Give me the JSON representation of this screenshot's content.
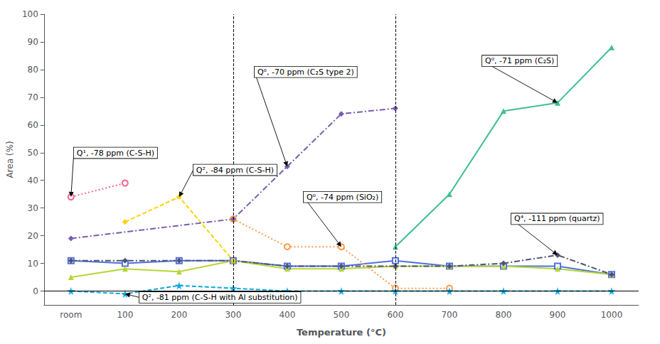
{
  "chart_data": {
    "type": "line",
    "categories": [
      "room",
      "100",
      "200",
      "300",
      "400",
      "500",
      "600",
      "700",
      "800",
      "900",
      "1000"
    ],
    "series": [
      {
        "values": [
          11,
          10,
          11,
          11,
          9,
          9,
          11,
          9,
          9,
          9,
          6
        ],
        "marker": "open_square",
        "line_style": "solid"
      },
      {
        "values": [
          5,
          8,
          7,
          11,
          8,
          8,
          9,
          9,
          9,
          8,
          6
        ],
        "marker": "triangle",
        "line_style": "solid"
      },
      {
        "values": [
          11,
          11,
          11,
          11,
          9,
          9,
          9,
          9,
          10,
          13,
          6
        ],
        "marker": "diamond",
        "line_style": "dashdot"
      },
      {
        "values": [
          null,
          null,
          null,
          26,
          16,
          16,
          1,
          1,
          null,
          null,
          null
        ],
        "marker": "open_circle",
        "line_style": "dotted"
      },
      {
        "values": [
          0,
          -1,
          2,
          1,
          0,
          0,
          0,
          0,
          0,
          0,
          0
        ],
        "marker": "star",
        "line_style": "dashed"
      },
      {
        "values": [
          null,
          25,
          34,
          11,
          null,
          null,
          null,
          null,
          null,
          null,
          null
        ],
        "marker": "diamond",
        "line_style": "dashed"
      },
      {
        "values": [
          34,
          39,
          null,
          null,
          null,
          null,
          null,
          null,
          null,
          null,
          null
        ],
        "marker": "open_circle",
        "line_style": "dotted"
      },
      {
        "values": [
          19,
          null,
          null,
          26,
          45,
          64,
          66,
          null,
          null,
          null,
          null
        ],
        "marker": "diamond",
        "line_style": "dashdot"
      },
      {
        "values": [
          null,
          null,
          null,
          null,
          null,
          null,
          16,
          35,
          65,
          68,
          88
        ],
        "marker": "triangle",
        "line_style": "solid"
      }
    ],
    "xlabel": "Temperature (°C)",
    "ylabel": "Area (%)",
    "ylim": [
      -5,
      100
    ],
    "yticks": [
      0,
      10,
      20,
      30,
      40,
      50,
      60,
      70,
      80,
      90,
      100
    ],
    "grid": false,
    "vlines": [
      "300",
      "600"
    ],
    "hlines": [
      0
    ],
    "annotations": [
      {
        "text": "Q¹, -78 ppm (C-S-H)",
        "x": "room",
        "y": 34
      },
      {
        "text": "Q², -81 ppm (C-S-H with Al substitution)",
        "x": "100",
        "y": -1
      },
      {
        "text": "Q², -84 ppm (C-S-H)",
        "x": "200",
        "y": 34
      },
      {
        "text": "Q⁰, -70 ppm (C₂S type 2)",
        "x": "400",
        "y": 45
      },
      {
        "text": "Q⁰, -74 ppm (SiO₂)",
        "x": "500",
        "y": 16
      },
      {
        "text": "Q⁰, -71 ppm (C₂S)",
        "x": "900",
        "y": 68
      },
      {
        "text": "Q⁴, -111 ppm (quartz)",
        "x": "900",
        "y": 13
      }
    ]
  }
}
